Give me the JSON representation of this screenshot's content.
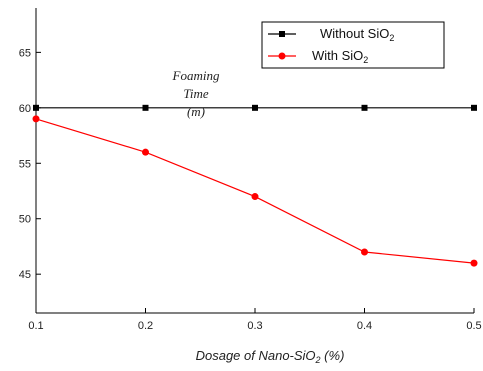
{
  "chart_data": {
    "type": "line",
    "x": [
      0.1,
      0.2,
      0.3,
      0.4,
      0.5
    ],
    "x_ticks": [
      "0.1",
      "0.2",
      "0.3",
      "0.4",
      "0.5"
    ],
    "y_ticks": [
      "45",
      "50",
      "55",
      "60",
      "65"
    ],
    "xlim": [
      0.1,
      0.5
    ],
    "ylim": [
      41.5,
      69
    ],
    "grid": false,
    "legend_position": "top-right",
    "xlabel_prefix": "Dosage of Nano-SiO",
    "xlabel_sub": "2",
    "xlabel_suffix": " (%)",
    "annotation": {
      "line1": "Foaming",
      "line2": "Time",
      "line3": "(m)"
    },
    "series": [
      {
        "name_prefix": "Without SiO",
        "name_sub": "2",
        "color": "#000000",
        "marker": "square",
        "values": [
          60,
          60,
          60,
          60,
          60
        ]
      },
      {
        "name_prefix": "With SiO",
        "name_sub": "2",
        "color": "#ff0000",
        "marker": "circle",
        "values": [
          59,
          56,
          52,
          47,
          46
        ]
      }
    ]
  }
}
